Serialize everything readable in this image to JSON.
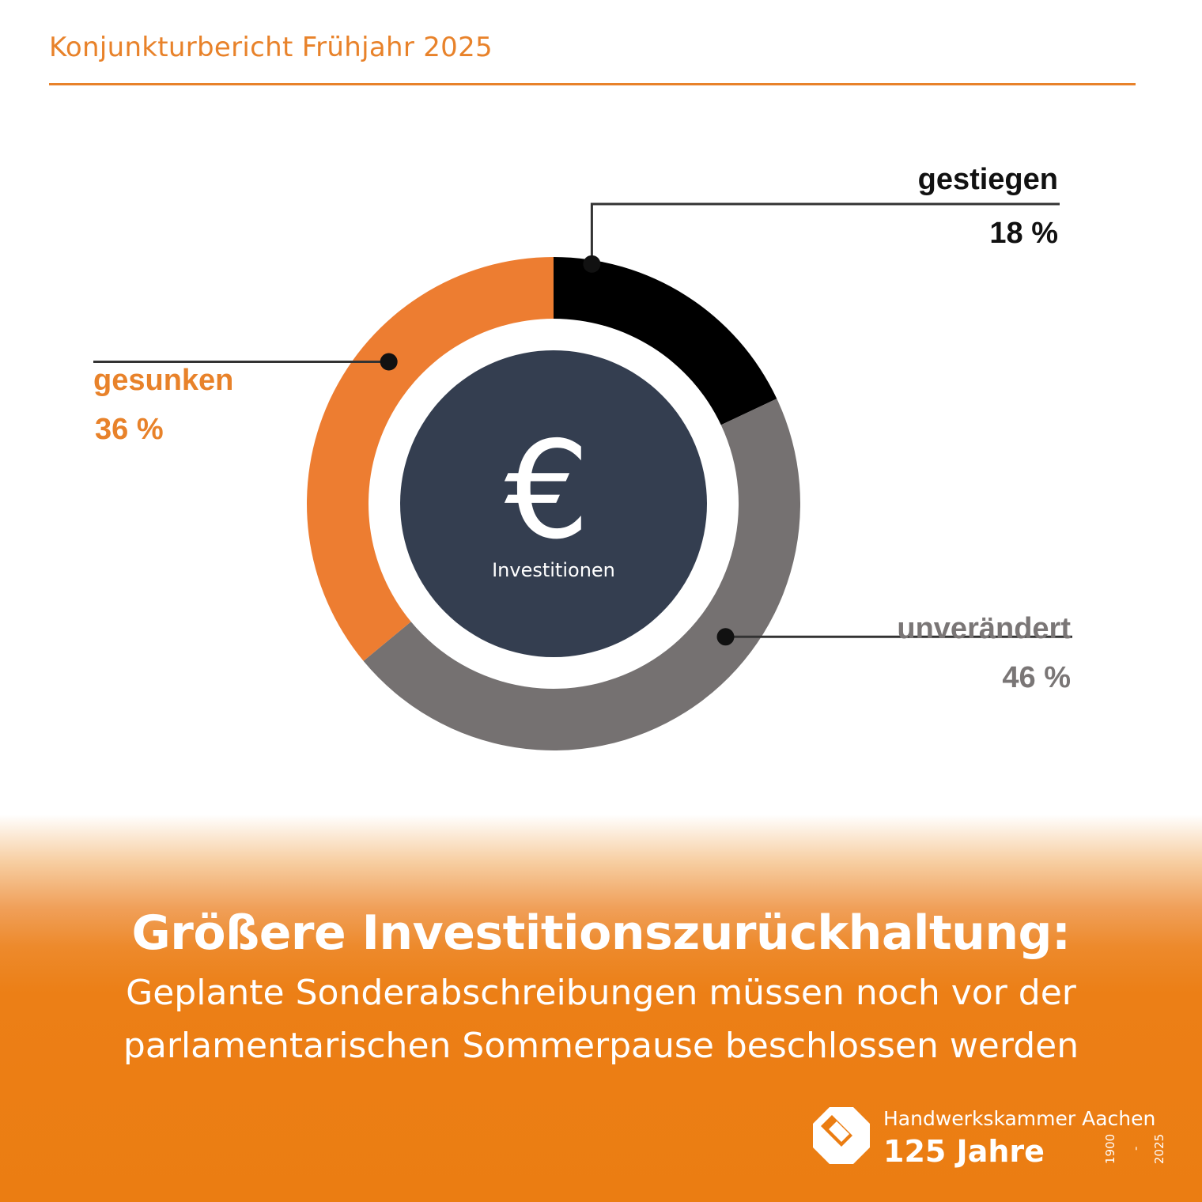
{
  "header": {
    "title": "Konjunkturbericht Frühjahr 2025"
  },
  "chart_data": {
    "type": "pie",
    "variant": "donut",
    "center_label": "Investitionen",
    "center_icon": "euro-icon",
    "categories": [
      "gestiegen",
      "unverändert",
      "gesunken"
    ],
    "values": [
      18,
      46,
      36
    ],
    "value_labels": [
      "18 %",
      "46 %",
      "36 %"
    ],
    "colors": [
      "#000000",
      "#757171",
      "#ed7d31"
    ],
    "label_colors": [
      "#111111",
      "#7a7676",
      "#e8822a"
    ],
    "center_color": "#343e50"
  },
  "footer": {
    "headline": "Größere Investitionszurückhaltung:",
    "subline_1": "Geplante Sonderabschreibungen müssen noch vor der",
    "subline_2": "parlamentarischen Sommerpause beschlossen werden"
  },
  "brand": {
    "name": "Handwerkskammer Aachen",
    "years": "125 Jahre",
    "year_start": "1900",
    "year_dash": "-",
    "year_end": "2025",
    "logo_icon": "handwerkskammer-logo-icon"
  },
  "colors": {
    "accent": "#e8822a",
    "footer_orange": "#eb7d12"
  }
}
